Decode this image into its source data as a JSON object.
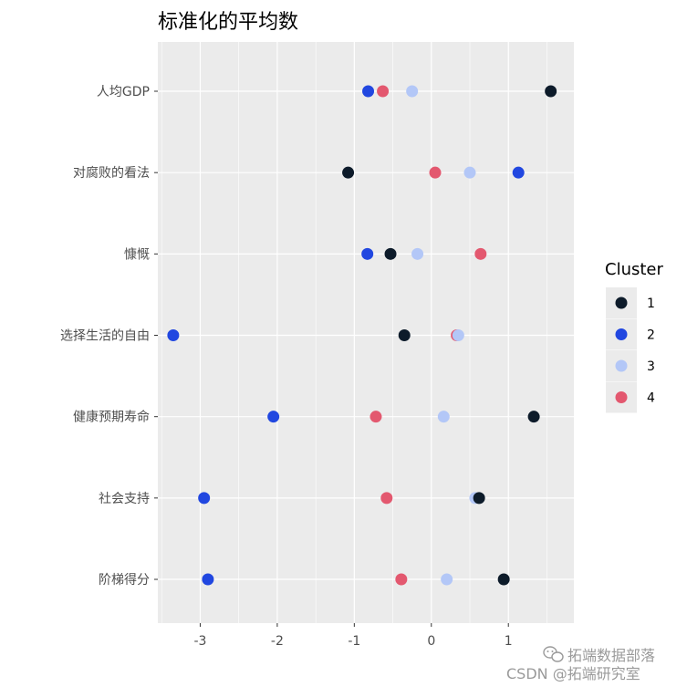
{
  "chart_data": {
    "type": "scatter",
    "title": "标准化的平均数",
    "xlabel": "",
    "ylabel": "",
    "x_ticks": [
      -3,
      -2,
      -1,
      0,
      1
    ],
    "xlim": [
      -3.55,
      1.85
    ],
    "categories": [
      "人均GDP",
      "对腐败的看法",
      "慷慨",
      "选择生活的自由",
      "健康预期寿命",
      "社会支持",
      "阶梯得分"
    ],
    "legend": {
      "title": "Cluster",
      "position": "right"
    },
    "grid": true,
    "series": [
      {
        "name": "1",
        "color": "#0d1b2a",
        "values": [
          1.55,
          -1.08,
          -0.53,
          -0.35,
          1.33,
          0.62,
          0.94
        ]
      },
      {
        "name": "2",
        "color": "#2147e0",
        "values": [
          -0.82,
          1.13,
          -0.83,
          -3.35,
          -2.05,
          -2.95,
          -2.9
        ]
      },
      {
        "name": "3",
        "color": "#b3c7f7",
        "values": [
          -0.25,
          0.5,
          -0.18,
          0.35,
          0.16,
          0.57,
          0.2
        ]
      },
      {
        "name": "4",
        "color": "#e3586f",
        "values": [
          -0.63,
          0.05,
          0.64,
          0.33,
          -0.72,
          -0.58,
          -0.39
        ]
      }
    ]
  },
  "watermark": {
    "brand": "拓端数据部落",
    "footer": "CSDN @拓端研究室"
  }
}
